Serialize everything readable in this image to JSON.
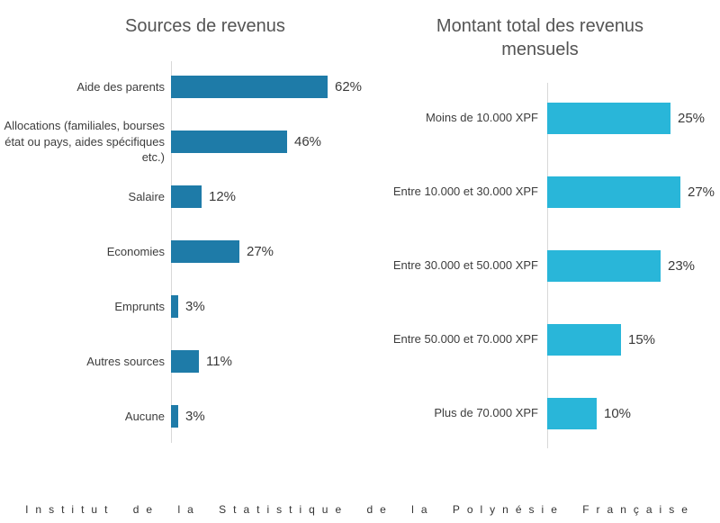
{
  "page": {
    "footer": "Institut de la Statistique de la Polynésie Française"
  },
  "chart_data": [
    {
      "type": "bar",
      "orientation": "horizontal",
      "title": "Sources de revenus",
      "categories": [
        "Aide des parents",
        "Allocations (familiales, bourses état ou pays, aides spécifiques etc.)",
        "Salaire",
        "Economies",
        "Emprunts",
        "Autres sources",
        "Aucune"
      ],
      "values": [
        62,
        46,
        12,
        27,
        3,
        11,
        3
      ],
      "value_labels": [
        "62%",
        "46%",
        "12%",
        "27%",
        "3%",
        "11%",
        "3%"
      ],
      "value_suffix": "%",
      "bar_color": "#1e7ba8",
      "xlim": [
        0,
        70
      ],
      "grid": false,
      "legend": false
    },
    {
      "type": "bar",
      "orientation": "horizontal",
      "title": "Montant total des revenus mensuels",
      "categories": [
        "Moins de 10.000 XPF",
        "Entre 10.000 et 30.000 XPF",
        "Entre 30.000 et 50.000 XPF",
        "Entre 50.000 et 70.000 XPF",
        "Plus de 70.000 XPF"
      ],
      "values": [
        25,
        27,
        23,
        15,
        10
      ],
      "value_labels": [
        "25%",
        "27%",
        "23%",
        "15%",
        "10%"
      ],
      "value_suffix": "%",
      "bar_color": "#29b6d9",
      "xlim": [
        0,
        30
      ],
      "grid": false,
      "legend": false
    }
  ],
  "colors": {
    "left_bar": "#1e7ba8",
    "right_bar": "#29b6d9",
    "axis_line": "#d8d8d8",
    "title_text": "#545454",
    "label_text": "#3d3d3d"
  }
}
